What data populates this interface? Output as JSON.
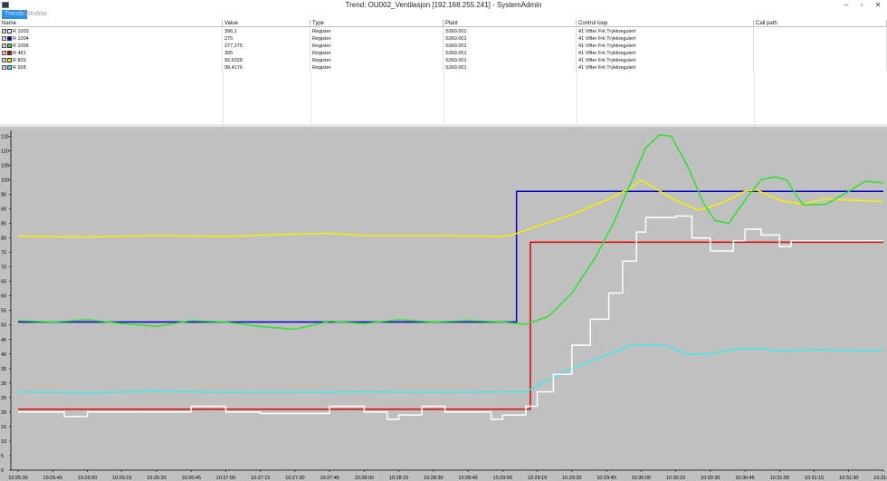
{
  "window": {
    "title": "Trend: OU002_Ventilasjon [192.168.255.241] - SystemAdmin",
    "minimize": "–",
    "maximize": "▫",
    "close": "✕"
  },
  "menu": {
    "items": [
      "Trends",
      "Window"
    ],
    "active_index": 0
  },
  "table": {
    "columns": [
      "Name",
      "Value",
      "Type",
      "Plant",
      "Control loop",
      "Call path"
    ],
    "rows": [
      {
        "name": "R 1003",
        "value": "396,1",
        "type": "Register",
        "plant": "S360.001",
        "loop": "41 Vifter Frk Trykkregulert",
        "color": "#ffffff"
      },
      {
        "name": "R 1004",
        "value": "275",
        "type": "Register",
        "plant": "S360.001",
        "loop": "41 Vifter Frk Trykkregulert",
        "color": "#0000c8"
      },
      {
        "name": "R 1058",
        "value": "277,275",
        "type": "Register",
        "plant": "S360.001",
        "loop": "41 Vifter Frk Trykkregulert",
        "color": "#2ee02e"
      },
      {
        "name": "R 481",
        "value": "395",
        "type": "Register",
        "plant": "S360.001",
        "loop": "41 Vifter Frk Trykkregulert",
        "color": "#e00000"
      },
      {
        "name": "R 829",
        "value": "92,6328",
        "type": "Register",
        "plant": "S360.001",
        "loop": "41 Vifter Frk Trykkregulert",
        "color": "#f5f000"
      },
      {
        "name": "R 928",
        "value": "98,4176",
        "type": "Register",
        "plant": "S360.001",
        "loop": "41 Vifter Frk Trykkregulert",
        "color": "#40e8e8"
      }
    ]
  },
  "chart_data": {
    "type": "line",
    "background": "#c0c0c0",
    "ylim": [
      0,
      117
    ],
    "y_ticks": [
      "0",
      "5",
      "10",
      "15",
      "20",
      "25",
      "30",
      "35",
      "40",
      "45",
      "50",
      "55",
      "60",
      "65",
      "70",
      "75",
      "80",
      "85",
      "90",
      "95",
      "100",
      "105",
      "110",
      "115"
    ],
    "x_ticks": [
      "10:25:30",
      "10:25:45",
      "10:26:00",
      "10:26:15",
      "10:26:30",
      "10:26:45",
      "10:27:00",
      "10:27:15",
      "10:27:30",
      "10:27:45",
      "10:28:00",
      "10:28:15",
      "10:28:30",
      "10:28:45",
      "10:29:00",
      "10:29:15",
      "10:29:30",
      "10:29:45",
      "10:30:00",
      "10:30:15",
      "10:30:30",
      "10:30:45",
      "10:31:00",
      "10:31:15",
      "10:31:30",
      "10:31:45"
    ],
    "x_range_sec": [
      0,
      375
    ],
    "series": [
      {
        "name": "R 1004",
        "color": "#0000c8",
        "points": [
          [
            0,
            51
          ],
          [
            216,
            51
          ],
          [
            216,
            96
          ],
          [
            375,
            96
          ]
        ]
      },
      {
        "name": "R 481",
        "color": "#e00000",
        "points": [
          [
            0,
            21
          ],
          [
            222,
            21
          ],
          [
            222,
            78.5
          ],
          [
            375,
            78.5
          ]
        ]
      },
      {
        "name": "R 829",
        "color": "#f5f000",
        "points": [
          [
            0,
            80.5
          ],
          [
            30,
            80.3
          ],
          [
            60,
            80.8
          ],
          [
            90,
            80.5
          ],
          [
            120,
            81.3
          ],
          [
            135,
            81.6
          ],
          [
            150,
            80.8
          ],
          [
            180,
            80.8
          ],
          [
            210,
            80.5
          ],
          [
            214,
            81
          ],
          [
            225,
            84
          ],
          [
            240,
            88
          ],
          [
            255,
            93
          ],
          [
            265,
            97
          ],
          [
            270,
            100
          ],
          [
            275,
            97.5
          ],
          [
            285,
            93
          ],
          [
            295,
            89.5
          ],
          [
            305,
            92
          ],
          [
            315,
            96
          ],
          [
            320,
            96.5
          ],
          [
            330,
            93
          ],
          [
            340,
            91.5
          ],
          [
            350,
            93.5
          ],
          [
            360,
            93
          ],
          [
            375,
            92.5
          ]
        ]
      },
      {
        "name": "R 1058",
        "color": "#2ee02e",
        "points": [
          [
            0,
            51.5
          ],
          [
            15,
            51
          ],
          [
            30,
            51.8
          ],
          [
            45,
            50.5
          ],
          [
            60,
            49.5
          ],
          [
            75,
            51.5
          ],
          [
            90,
            51
          ],
          [
            105,
            49.5
          ],
          [
            120,
            48.5
          ],
          [
            135,
            51.3
          ],
          [
            150,
            50.5
          ],
          [
            165,
            51.8
          ],
          [
            180,
            51
          ],
          [
            195,
            51.5
          ],
          [
            210,
            51
          ],
          [
            220,
            50.2
          ],
          [
            230,
            53
          ],
          [
            240,
            61
          ],
          [
            250,
            73
          ],
          [
            258,
            85
          ],
          [
            265,
            98
          ],
          [
            272,
            111
          ],
          [
            278,
            115.5
          ],
          [
            283,
            115
          ],
          [
            290,
            105
          ],
          [
            297,
            92
          ],
          [
            302,
            86
          ],
          [
            308,
            85
          ],
          [
            315,
            93
          ],
          [
            322,
            100
          ],
          [
            328,
            101
          ],
          [
            333,
            100
          ],
          [
            340,
            91.5
          ],
          [
            350,
            91.5
          ],
          [
            360,
            96
          ],
          [
            367,
            99.5
          ],
          [
            375,
            99
          ]
        ]
      },
      {
        "name": "R 928",
        "color": "#40e8e8",
        "points": [
          [
            0,
            27
          ],
          [
            30,
            26.5
          ],
          [
            60,
            27.3
          ],
          [
            90,
            26.7
          ],
          [
            120,
            26.8
          ],
          [
            150,
            27
          ],
          [
            180,
            26.8
          ],
          [
            210,
            27
          ],
          [
            220,
            27
          ],
          [
            230,
            31
          ],
          [
            240,
            35
          ],
          [
            255,
            39.5
          ],
          [
            265,
            43
          ],
          [
            280,
            43
          ],
          [
            290,
            40
          ],
          [
            300,
            40
          ],
          [
            310,
            41.5
          ],
          [
            320,
            42
          ],
          [
            330,
            41
          ],
          [
            345,
            41.5
          ],
          [
            375,
            41
          ]
        ]
      },
      {
        "name": "R 1003",
        "color": "#ffffff",
        "step": true,
        "points": [
          [
            0,
            20
          ],
          [
            20,
            18.5
          ],
          [
            30,
            20
          ],
          [
            75,
            22
          ],
          [
            90,
            20
          ],
          [
            105,
            19.5
          ],
          [
            135,
            22
          ],
          [
            150,
            20
          ],
          [
            160,
            17.5
          ],
          [
            165,
            19
          ],
          [
            175,
            22
          ],
          [
            185,
            20
          ],
          [
            205,
            17.5
          ],
          [
            210,
            19
          ],
          [
            220,
            22
          ],
          [
            225,
            27
          ],
          [
            232,
            33
          ],
          [
            240,
            43
          ],
          [
            248,
            52
          ],
          [
            256,
            61
          ],
          [
            262,
            72
          ],
          [
            268,
            82
          ],
          [
            272,
            87
          ],
          [
            285,
            87.5
          ],
          [
            292,
            80
          ],
          [
            300,
            75.5
          ],
          [
            310,
            79
          ],
          [
            315,
            83
          ],
          [
            322,
            81
          ],
          [
            330,
            77
          ],
          [
            335,
            79
          ],
          [
            375,
            79
          ]
        ]
      }
    ]
  }
}
